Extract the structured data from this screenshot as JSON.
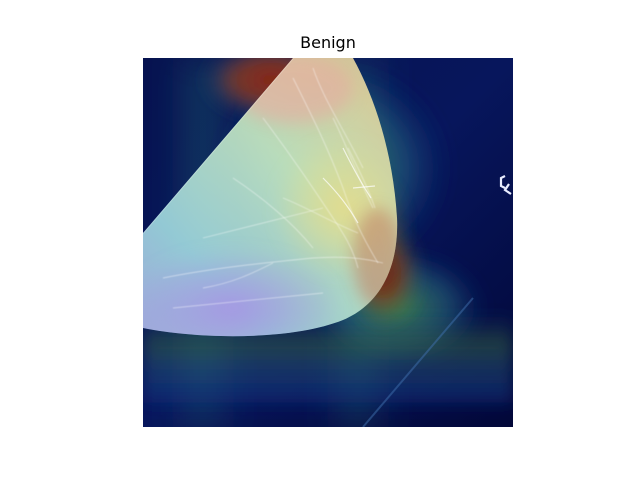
{
  "figure": {
    "title": "Benign"
  },
  "image": {
    "description_icon": "mammogram-heatmap-overlay",
    "colors": {
      "background": "#ffffff",
      "heatmap_low": "#000a3c",
      "heatmap_mid_blue": "#1d3f9b",
      "heatmap_cyan": "#5fd7c9",
      "heatmap_green": "#5fb35a",
      "heatmap_yellow": "#d5c65b",
      "heatmap_red": "#8a1a10",
      "tissue_light": "#e4f1ea",
      "tissue_purple": "#b39be6"
    }
  }
}
